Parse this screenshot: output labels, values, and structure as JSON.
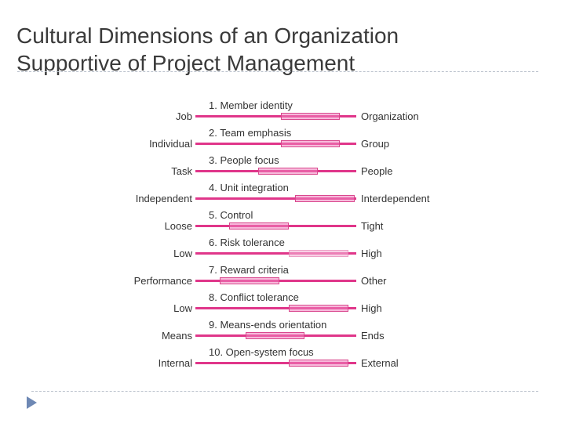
{
  "title": {
    "line1": "Cultural Dimensions of an Organization",
    "line2": "Supportive of Project Management"
  },
  "icons": {
    "bullet": "play-triangle-icon"
  },
  "colors": {
    "line": "#e0368a",
    "range_fill": "#f082be",
    "range_border": "#d9488e",
    "title": "#3a3a3a",
    "divider": "#b9c0cb",
    "bullet": "#6e88b4"
  },
  "dimensions": [
    {
      "number": "1. Member identity",
      "left": "Job",
      "right": "Organization",
      "range": [
        0.53,
        0.9
      ]
    },
    {
      "number": "2. Team emphasis",
      "left": "Individual",
      "right": "Group",
      "range": [
        0.53,
        0.9
      ]
    },
    {
      "number": "3. People focus",
      "left": "Task",
      "right": "People",
      "range": [
        0.39,
        0.76
      ]
    },
    {
      "number": "4. Unit integration",
      "left": "Independent",
      "right": "Interdependent",
      "range": [
        0.62,
        0.99
      ]
    },
    {
      "number": "5. Control",
      "left": "Loose",
      "right": "Tight",
      "range": [
        0.21,
        0.58
      ]
    },
    {
      "number": "6. Risk tolerance",
      "left": "Low",
      "right": "High",
      "range": [
        0.58,
        0.95
      ],
      "faint": true
    },
    {
      "number": "7. Reward criteria",
      "left": "Performance",
      "right": "Other",
      "range": [
        0.15,
        0.52
      ]
    },
    {
      "number": "8. Conflict tolerance",
      "left": "Low",
      "right": "High",
      "range": [
        0.58,
        0.95
      ]
    },
    {
      "number": "9. Means-ends orientation",
      "left": "Means",
      "right": "Ends",
      "range": [
        0.31,
        0.68
      ]
    },
    {
      "number": "10. Open-system focus",
      "left": "Internal",
      "right": "External",
      "range": [
        0.58,
        0.95
      ]
    }
  ]
}
